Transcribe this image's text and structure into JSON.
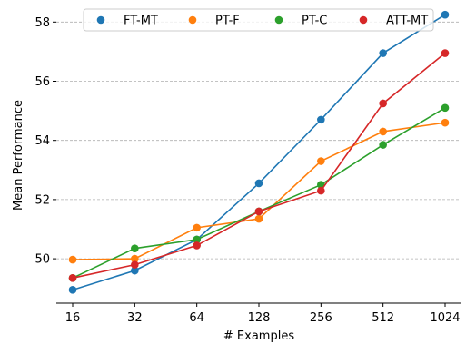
{
  "chart_data": {
    "type": "line",
    "title": "",
    "xlabel": "# Examples",
    "ylabel": "Mean Performance",
    "x": [
      16,
      32,
      64,
      128,
      256,
      512,
      1024
    ],
    "x_tick_labels": [
      "16",
      "32",
      "64",
      "128",
      "256",
      "512",
      "1024"
    ],
    "x_scale": "log2",
    "y_ticks": [
      50,
      52,
      54,
      56,
      58
    ],
    "y_tick_labels": [
      "50",
      "52",
      "54",
      "56",
      "58"
    ],
    "ylim": [
      48.5,
      58.5
    ],
    "grid": "horizontal-dashed",
    "legend_position": "top",
    "series": [
      {
        "name": "FT-MT",
        "color": "#1f77b4",
        "values": [
          48.95,
          49.6,
          50.65,
          52.55,
          54.7,
          56.95,
          58.25
        ]
      },
      {
        "name": "PT-F",
        "color": "#ff7f0e",
        "values": [
          49.97,
          50.0,
          51.05,
          51.35,
          53.3,
          54.3,
          54.6
        ]
      },
      {
        "name": "PT-C",
        "color": "#2ca02c",
        "values": [
          49.35,
          50.35,
          50.65,
          51.6,
          52.5,
          53.85,
          55.1
        ]
      },
      {
        "name": "ATT-MT",
        "color": "#d62728",
        "values": [
          49.35,
          49.8,
          50.45,
          51.6,
          52.3,
          55.25,
          56.95
        ]
      }
    ]
  }
}
